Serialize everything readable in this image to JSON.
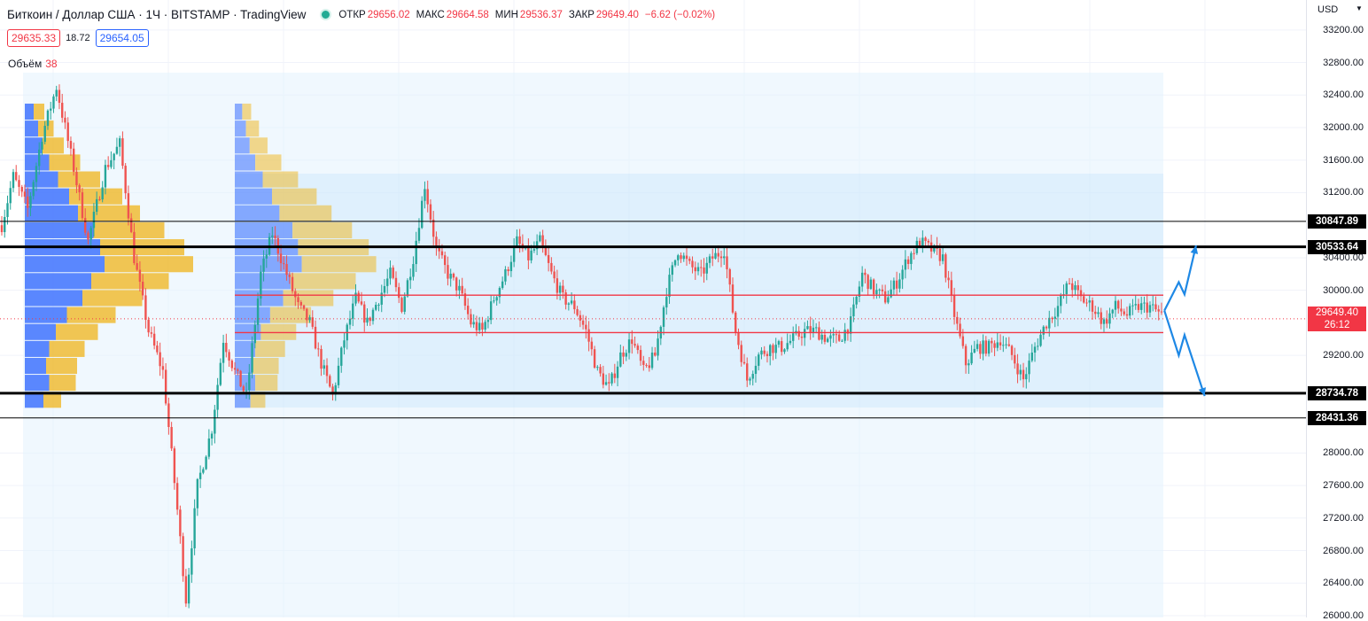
{
  "header": {
    "title": "Биткоин / Доллар США · 1Ч · BITSTAMP · TradingView",
    "ohlc": [
      {
        "label": "ОТКР",
        "value": "29656.02"
      },
      {
        "label": "МАКС",
        "value": "29664.58"
      },
      {
        "label": "МИН",
        "value": "29536.37"
      },
      {
        "label": "ЗАКР",
        "value": "29649.40"
      }
    ],
    "change": "−6.62 (−0.02%)",
    "status_color": "#22ab94"
  },
  "quote": {
    "bid": "29635.33",
    "spread": "18.72",
    "ask": "29654.05"
  },
  "volume": {
    "label": "Объём",
    "value": "38"
  },
  "axis": {
    "currency": "USD"
  },
  "colors": {
    "up": "#26a69a",
    "down": "#ef5350",
    "profile_blue": "#2962ff",
    "profile_yellow": "#f0b51a",
    "drawing": "#1e88e5",
    "level": "#000000",
    "range": "#f23645"
  },
  "chart_data": {
    "type": "candlestick",
    "title": "Биткоин / Доллар США · 1Ч · BITSTAMP",
    "ylim": [
      26000,
      33400
    ],
    "y_ticks": [
      "33200.00",
      "32800.00",
      "32400.00",
      "32000.00",
      "31600.00",
      "31200.00",
      "30400.00",
      "30000.00",
      "29200.00",
      "28000.00",
      "27600.00",
      "27200.00",
      "26800.00",
      "26400.00",
      "26000.00"
    ],
    "levels": [
      {
        "price": 30847.89,
        "label": "30847.89",
        "style": "thin"
      },
      {
        "price": 30533.64,
        "label": "30533.64",
        "style": "thick"
      },
      {
        "price": 28734.78,
        "label": "28734.78",
        "style": "thick"
      },
      {
        "price": 28431.36,
        "label": "28431.36",
        "style": "thin"
      }
    ],
    "range_lines": [
      29940,
      29480
    ],
    "last_price": {
      "value": "29649.40",
      "countdown": "26:12"
    },
    "path": [
      [
        0,
        30800
      ],
      [
        4,
        31400
      ],
      [
        9,
        31000
      ],
      [
        14,
        31900
      ],
      [
        19,
        32500
      ],
      [
        25,
        31500
      ],
      [
        30,
        30600
      ],
      [
        36,
        31500
      ],
      [
        41,
        31800
      ],
      [
        46,
        30400
      ],
      [
        51,
        29500
      ],
      [
        56,
        29000
      ],
      [
        61,
        27300
      ],
      [
        64,
        26200
      ],
      [
        68,
        27600
      ],
      [
        73,
        28300
      ],
      [
        77,
        29400
      ],
      [
        81,
        29000
      ],
      [
        85,
        28700
      ],
      [
        90,
        30200
      ],
      [
        94,
        30700
      ],
      [
        99,
        30200
      ],
      [
        103,
        29800
      ],
      [
        107,
        29600
      ],
      [
        111,
        29100
      ],
      [
        115,
        28700
      ],
      [
        119,
        29400
      ],
      [
        123,
        29900
      ],
      [
        127,
        29600
      ],
      [
        131,
        29900
      ],
      [
        135,
        30200
      ],
      [
        139,
        29800
      ],
      [
        143,
        30400
      ],
      [
        147,
        31300
      ],
      [
        151,
        30500
      ],
      [
        155,
        30200
      ],
      [
        159,
        30000
      ],
      [
        163,
        29600
      ],
      [
        167,
        29500
      ],
      [
        171,
        29900
      ],
      [
        175,
        30200
      ],
      [
        179,
        30600
      ],
      [
        183,
        30400
      ],
      [
        187,
        30600
      ],
      [
        191,
        30200
      ],
      [
        195,
        29900
      ],
      [
        199,
        29800
      ],
      [
        203,
        29500
      ],
      [
        207,
        29000
      ],
      [
        211,
        28800
      ],
      [
        215,
        29200
      ],
      [
        219,
        29400
      ],
      [
        223,
        29000
      ],
      [
        227,
        29200
      ],
      [
        231,
        30000
      ],
      [
        235,
        30500
      ],
      [
        239,
        30300
      ],
      [
        243,
        30200
      ],
      [
        247,
        30400
      ],
      [
        251,
        30500
      ],
      [
        255,
        29500
      ],
      [
        259,
        28900
      ],
      [
        263,
        29200
      ],
      [
        267,
        29300
      ],
      [
        271,
        29300
      ],
      [
        275,
        29400
      ],
      [
        279,
        29500
      ],
      [
        283,
        29500
      ],
      [
        287,
        29400
      ],
      [
        291,
        29400
      ],
      [
        295,
        29600
      ],
      [
        299,
        30200
      ],
      [
        303,
        30000
      ],
      [
        307,
        29900
      ],
      [
        311,
        30100
      ],
      [
        315,
        30400
      ],
      [
        319,
        30600
      ],
      [
        323,
        30500
      ],
      [
        327,
        30400
      ],
      [
        331,
        29700
      ],
      [
        335,
        29100
      ],
      [
        339,
        29300
      ],
      [
        343,
        29300
      ],
      [
        347,
        29400
      ],
      [
        351,
        29200
      ],
      [
        355,
        28900
      ],
      [
        359,
        29300
      ],
      [
        363,
        29600
      ],
      [
        367,
        29800
      ],
      [
        371,
        30100
      ],
      [
        375,
        29900
      ],
      [
        379,
        29800
      ],
      [
        383,
        29600
      ],
      [
        387,
        29800
      ],
      [
        391,
        29700
      ],
      [
        395,
        29800
      ],
      [
        399,
        29800
      ],
      [
        403,
        29700
      ]
    ],
    "candle_count": 404,
    "volume_profile": {
      "price_range": [
        28550,
        32300
      ],
      "rows": [
        {
          "up": 42,
          "down": 40
        },
        {
          "up": 55,
          "down": 60
        },
        {
          "up": 48,
          "down": 70
        },
        {
          "up": 55,
          "down": 80
        },
        {
          "up": 70,
          "down": 95
        },
        {
          "up": 95,
          "down": 110
        },
        {
          "up": 130,
          "down": 135
        },
        {
          "up": 150,
          "down": 175
        },
        {
          "up": 180,
          "down": 200
        },
        {
          "up": 170,
          "down": 190
        },
        {
          "up": 155,
          "down": 160
        },
        {
          "up": 120,
          "down": 140
        },
        {
          "up": 100,
          "down": 120
        },
        {
          "up": 75,
          "down": 95
        },
        {
          "up": 55,
          "down": 70
        },
        {
          "up": 40,
          "down": 48
        },
        {
          "up": 30,
          "down": 35
        },
        {
          "up": 20,
          "down": 24
        }
      ]
    },
    "projection": {
      "up": [
        [
          404,
          29750
        ],
        [
          409,
          30100
        ],
        [
          411,
          29950
        ],
        [
          415,
          30550
        ]
      ],
      "down": [
        [
          404,
          29750
        ],
        [
          409,
          29200
        ],
        [
          411,
          29450
        ],
        [
          418,
          28700
        ]
      ]
    }
  }
}
